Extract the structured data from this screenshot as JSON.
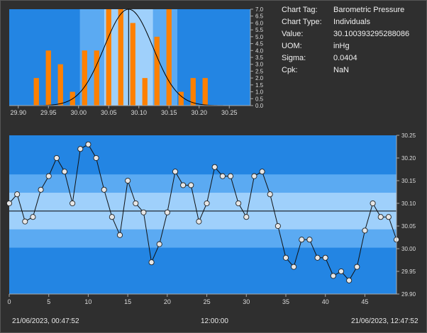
{
  "info": [
    {
      "label": "Chart Tag:",
      "value": "Barometric Pressure"
    },
    {
      "label": "Chart Type:",
      "value": "Individuals"
    },
    {
      "label": "Value:",
      "value": "30.100393295288086"
    },
    {
      "label": "UOM:",
      "value": "inHg"
    },
    {
      "label": "Sigma:",
      "value": "0.0404"
    },
    {
      "label": "Cpk:",
      "value": "NaN"
    }
  ],
  "timestamps": {
    "start": "21/06/2023, 00:47:52",
    "middle": "12:00:00",
    "end": "21/06/2023, 12:47:52"
  },
  "colors": {
    "background": "#2f2f2f",
    "zone_outer": "#2385e3",
    "zone_middle": "#5baaf2",
    "zone_inner": "#9fd0fb",
    "histogram_bar": "#ff8000",
    "marker_fill": "#e6e6e6",
    "line": "#111111"
  },
  "chart_data": [
    {
      "type": "bar",
      "name": "histogram",
      "bin_width": 0.01,
      "bin_centers": [
        29.93,
        29.95,
        29.97,
        29.99,
        30.01,
        30.03,
        30.05,
        30.07,
        30.09,
        30.11,
        30.13,
        30.15,
        30.17,
        30.19,
        30.21
      ],
      "values": [
        2,
        4,
        3,
        1,
        4,
        4,
        7,
        7,
        6,
        2,
        5,
        7,
        1,
        2,
        2
      ],
      "xlim": [
        29.885,
        30.285
      ],
      "ylim": [
        0,
        7.0
      ],
      "xticks": [
        "29.90",
        "29.95",
        "30.00",
        "30.05",
        "30.10",
        "30.15",
        "30.20",
        "30.25"
      ],
      "yticks": [
        "0.0",
        "0.5",
        "1.0",
        "1.5",
        "2.0",
        "2.5",
        "3.0",
        "3.5",
        "4.0",
        "4.5",
        "5.0",
        "5.5",
        "6.0",
        "6.5",
        "7.0"
      ],
      "mean": 30.083,
      "sigma": 0.0404,
      "normal_curve_peak": 7.0
    },
    {
      "type": "line",
      "name": "individuals",
      "x": [
        0,
        1,
        2,
        3,
        4,
        5,
        6,
        7,
        8,
        9,
        10,
        11,
        12,
        13,
        14,
        15,
        16,
        17,
        18,
        19,
        20,
        21,
        22,
        23,
        24,
        25,
        26,
        27,
        28,
        29,
        30,
        31,
        32,
        33,
        34,
        35,
        36,
        37,
        38,
        39,
        40,
        41,
        42,
        43,
        44,
        45,
        46,
        47,
        48,
        49
      ],
      "y": [
        30.1,
        30.12,
        30.06,
        30.07,
        30.13,
        30.16,
        30.2,
        30.17,
        30.1,
        30.22,
        30.23,
        30.2,
        30.13,
        30.07,
        30.03,
        30.15,
        30.1,
        30.08,
        29.97,
        30.01,
        30.08,
        30.17,
        30.14,
        30.14,
        30.06,
        30.1,
        30.18,
        30.16,
        30.16,
        30.1,
        30.07,
        30.16,
        30.17,
        30.12,
        30.05,
        29.98,
        29.96,
        30.02,
        30.02,
        29.98,
        29.98,
        29.94,
        29.95,
        29.93,
        29.96,
        30.04,
        30.1,
        30.07,
        30.07,
        30.02
      ],
      "xlim": [
        0,
        49
      ],
      "ylim": [
        29.9,
        30.25
      ],
      "xticks": [
        "0",
        "5",
        "10",
        "15",
        "20",
        "25",
        "30",
        "35",
        "40",
        "45"
      ],
      "yticks": [
        "29.90",
        "29.95",
        "30.00",
        "30.05",
        "30.10",
        "30.15",
        "30.20",
        "30.25"
      ],
      "centerline": 30.083
    }
  ]
}
